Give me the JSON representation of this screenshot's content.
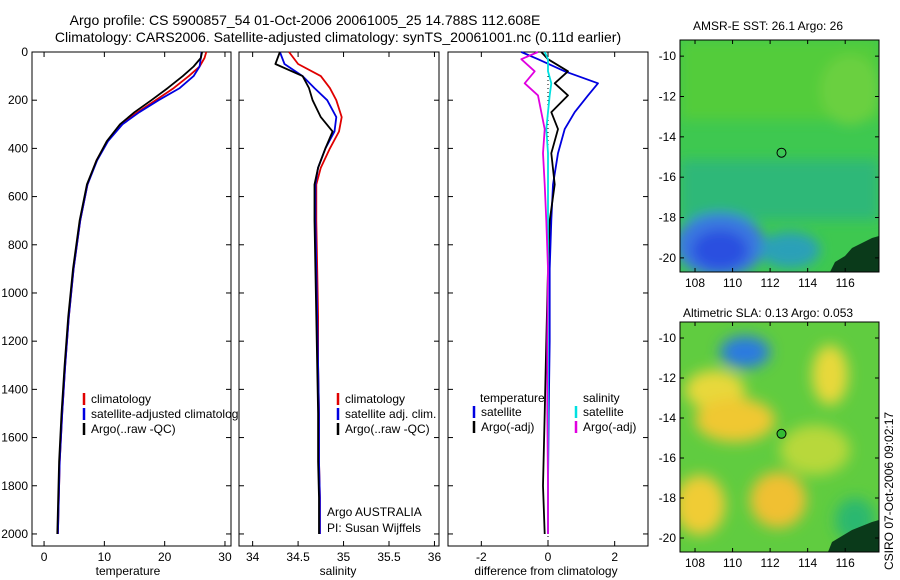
{
  "figure": {
    "title_line1": "Argo profile: CS 5900857_54 01-Oct-2006 20061005_25 14.788S 112.608E",
    "title_line2": "Climatology: CARS2006. Satellite-adjusted climatology: synTS_20061001.nc (0.11d earlier)",
    "footer_vertical": "CSIRO 07-Oct-2006 09:02:17"
  },
  "chart_data": [
    {
      "type": "line",
      "id": "temperature",
      "xlabel": "temperature",
      "ylabel": "",
      "xlim": [
        -2,
        31
      ],
      "ylim": [
        2050,
        0
      ],
      "xticks": [
        0,
        10,
        20,
        30
      ],
      "xtick_labels": [
        "0",
        "10",
        "20",
        "30"
      ],
      "yticks": [
        0,
        200,
        400,
        600,
        800,
        1000,
        1200,
        1400,
        1600,
        1800,
        2000
      ],
      "ytick_labels": [
        "0",
        "200",
        "400",
        "600",
        "800",
        "1000",
        "1200",
        "1400",
        "1600",
        "1800",
        "2000"
      ],
      "legend": [
        "climatology",
        "satellite-adjusted climatology",
        "Argo(..raw -QC)"
      ],
      "series": [
        {
          "name": "climatology",
          "color": "#e00000",
          "x": [
            26.9,
            26.6,
            25.8,
            24.0,
            21.5,
            18.5,
            15.5,
            12.8,
            10.5,
            8.7,
            7.2,
            6.0,
            4.9,
            4.1,
            3.5,
            3.0,
            2.6,
            2.3
          ],
          "y": [
            0,
            25,
            60,
            100,
            150,
            200,
            250,
            300,
            370,
            450,
            550,
            700,
            900,
            1100,
            1300,
            1500,
            1700,
            2000
          ]
        },
        {
          "name": "satellite-adjusted climatology",
          "color": "#0000e0",
          "x": [
            26.1,
            26.0,
            25.8,
            24.8,
            22.5,
            19.0,
            15.8,
            13.0,
            10.6,
            8.8,
            7.2,
            6.0,
            4.9,
            4.1,
            3.5,
            3.0,
            2.6,
            2.3
          ],
          "y": [
            0,
            25,
            60,
            100,
            150,
            200,
            250,
            300,
            370,
            450,
            550,
            700,
            900,
            1100,
            1300,
            1500,
            1700,
            2000
          ]
        },
        {
          "name": "Argo(..raw -QC)",
          "color": "#000000",
          "x": [
            26.2,
            26.0,
            24.8,
            23.0,
            20.5,
            17.8,
            15.0,
            12.6,
            10.4,
            8.7,
            7.1,
            5.9,
            4.8,
            4.0,
            3.4,
            2.9,
            2.5,
            2.2
          ],
          "y": [
            0,
            25,
            60,
            100,
            150,
            200,
            250,
            300,
            370,
            450,
            550,
            700,
            900,
            1100,
            1300,
            1500,
            1700,
            2000
          ]
        }
      ]
    },
    {
      "type": "line",
      "id": "salinity",
      "xlabel": "salinity",
      "ylabel": "",
      "xlim": [
        33.85,
        36.05
      ],
      "ylim": [
        2050,
        0
      ],
      "xticks": [
        34,
        34.5,
        35,
        35.5,
        36
      ],
      "xtick_labels": [
        "34",
        "34.5",
        "35",
        "35.5",
        "36"
      ],
      "legend": [
        "climatology",
        "satellite adj. clim.",
        "Argo(..raw -QC)"
      ],
      "annotations": [
        "Argo AUSTRALIA",
        "PI: Susan Wijffels"
      ],
      "series": [
        {
          "name": "climatology",
          "color": "#e00000",
          "x": [
            34.4,
            34.5,
            34.75,
            34.85,
            34.92,
            34.98,
            34.95,
            34.85,
            34.75,
            34.7,
            34.7,
            34.71,
            34.72,
            34.72,
            34.73,
            34.73,
            34.74,
            34.74
          ],
          "y": [
            0,
            50,
            100,
            150,
            200,
            270,
            330,
            400,
            480,
            550,
            700,
            900,
            1100,
            1300,
            1500,
            1700,
            1850,
            2000
          ]
        },
        {
          "name": "satellite adj. clim.",
          "color": "#0000e0",
          "x": [
            34.3,
            34.35,
            34.55,
            34.68,
            34.82,
            34.92,
            34.9,
            34.8,
            34.72,
            34.69,
            34.69,
            34.7,
            34.71,
            34.72,
            34.73,
            34.73,
            34.74,
            34.74
          ],
          "y": [
            0,
            50,
            100,
            150,
            200,
            270,
            330,
            400,
            480,
            550,
            700,
            900,
            1100,
            1300,
            1500,
            1700,
            1850,
            2000
          ]
        },
        {
          "name": "Argo(..raw -QC)",
          "color": "#000000",
          "x": [
            34.3,
            34.25,
            34.55,
            34.62,
            34.66,
            34.75,
            34.88,
            34.8,
            34.72,
            34.68,
            34.68,
            34.69,
            34.7,
            34.71,
            34.72,
            34.72,
            34.73,
            34.73
          ],
          "y": [
            0,
            50,
            100,
            150,
            200,
            270,
            330,
            400,
            480,
            550,
            700,
            900,
            1100,
            1300,
            1500,
            1700,
            1850,
            2000
          ]
        }
      ]
    },
    {
      "type": "line",
      "id": "difference",
      "xlabel": "difference from climatology",
      "ylabel": "",
      "xlim": [
        -3,
        3
      ],
      "ylim": [
        2050,
        0
      ],
      "xticks": [
        -2,
        0,
        2
      ],
      "xtick_labels": [
        "-2",
        "0",
        "2"
      ],
      "legend_headers": [
        "temperature",
        "salinity"
      ],
      "legend": [
        "satellite",
        "Argo(-adj)",
        "satellite",
        "Argo(-adj)"
      ],
      "series": [
        {
          "name": "temperature satellite",
          "color": "#0000e0",
          "x": [
            -0.8,
            -0.3,
            0.5,
            1.5,
            1.2,
            0.8,
            0.5,
            0.3,
            0.15,
            0.1,
            0.05,
            0.05,
            0.02,
            0.0,
            0.0
          ],
          "y": [
            0,
            30,
            80,
            130,
            180,
            250,
            320,
            420,
            550,
            700,
            900,
            1200,
            1500,
            1800,
            2000
          ]
        },
        {
          "name": "temperature Argo(-adj)",
          "color": "#000000",
          "x": [
            -0.2,
            0.0,
            0.6,
            0.2,
            0.6,
            0.1,
            0.3,
            0.1,
            0.2,
            0.05,
            0.0,
            -0.05,
            -0.1,
            -0.15,
            -0.1
          ],
          "y": [
            0,
            30,
            80,
            130,
            180,
            250,
            320,
            420,
            550,
            700,
            900,
            1200,
            1500,
            1800,
            2000
          ]
        },
        {
          "name": "salinity satellite",
          "color": "#00e0e0",
          "x": [
            -0.1,
            0.0,
            0.0,
            0.1,
            0.05,
            0.0,
            -0.05,
            0.0,
            0.0,
            0.0,
            0.0,
            0.0,
            0.0,
            0.0,
            0.0
          ],
          "y": [
            0,
            30,
            80,
            130,
            180,
            250,
            320,
            420,
            550,
            700,
            900,
            1200,
            1500,
            1800,
            2000
          ]
        },
        {
          "name": "salinity Argo(-adj)",
          "color": "#e000e0",
          "x": [
            -0.3,
            -0.8,
            -0.4,
            -0.7,
            -0.3,
            -0.2,
            -0.1,
            -0.15,
            -0.1,
            -0.05,
            0.0,
            -0.02,
            -0.02,
            0.0,
            0.0
          ],
          "y": [
            0,
            30,
            80,
            130,
            180,
            250,
            320,
            420,
            550,
            700,
            900,
            1200,
            1500,
            1800,
            2000
          ]
        }
      ]
    },
    {
      "type": "heatmap",
      "id": "sst_map",
      "title": "AMSR-E SST: 26.1  Argo: 26",
      "xlim": [
        107.2,
        117.8
      ],
      "ylim": [
        -20.7,
        -9.2
      ],
      "xticks": [
        108,
        110,
        112,
        114,
        116
      ],
      "xtick_labels": [
        "108",
        "110",
        "112",
        "114",
        "116"
      ],
      "yticks": [
        -10,
        -12,
        -14,
        -16,
        -18,
        -20
      ],
      "ytick_labels": [
        "-10",
        "-12",
        "-14",
        "-16",
        "-18",
        "-20"
      ],
      "float_position": [
        112.608,
        -14.788
      ],
      "marker_fill": "none"
    },
    {
      "type": "heatmap",
      "id": "sla_map",
      "title": "Altimetric SLA: 0.13  Argo: 0.053",
      "xlim": [
        107.2,
        117.8
      ],
      "ylim": [
        -20.7,
        -9.2
      ],
      "xticks": [
        108,
        110,
        112,
        114,
        116
      ],
      "xtick_labels": [
        "108",
        "110",
        "112",
        "114",
        "116"
      ],
      "yticks": [
        -10,
        -12,
        -14,
        -16,
        -18,
        -20
      ],
      "ytick_labels": [
        "-10",
        "-12",
        "-14",
        "-16",
        "-18",
        "-20"
      ],
      "float_position": [
        112.608,
        -14.788
      ],
      "marker_fill": "#33bb33"
    }
  ]
}
